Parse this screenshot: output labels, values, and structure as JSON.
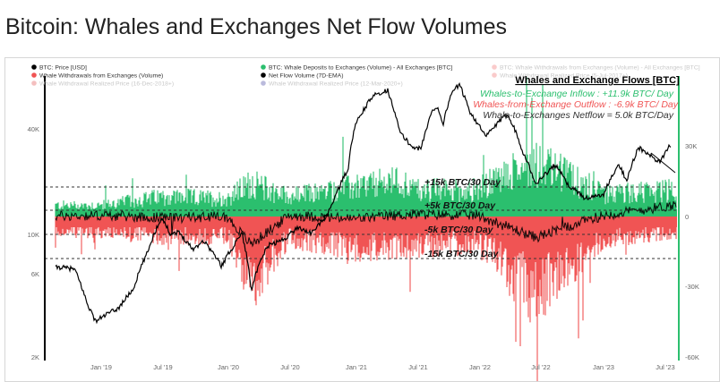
{
  "page": {
    "title": "Bitcoin: Whales and Exchanges Net Flow Volumes"
  },
  "legend": [
    {
      "label": "BTC: Price [USD]",
      "color": "#000000",
      "faded": false
    },
    {
      "label": "BTC: Whale Deposits to Exchanges (Volume) - All Exchanges [BTC]",
      "color": "#2bbf6e",
      "faded": false
    },
    {
      "label": "BTC: Whale Withdrawals from Exchanges (Volume) - All Exchanges [BTC]",
      "color": "#f26b6b",
      "faded": true
    },
    {
      "label": "Whale Withdrawals from Exchanges (Volume)",
      "color": "#f05454",
      "faded": false
    },
    {
      "label": "Net Flow Volume (7D-EMA)",
      "color": "#000000",
      "faded": false
    },
    {
      "label": "Whale Withdrawal Realized Price (5-Jul-2017+)",
      "color": "#f26b6b",
      "faded": true
    },
    {
      "label": "Whale Withdrawal Realized Price (16-Dec-2018+)",
      "color": "#e04848",
      "faded": true
    },
    {
      "label": "Whale Withdrawal Realized Price (12-Mar-2020+)",
      "color": "#3a3a9a",
      "faded": true
    }
  ],
  "annotations": {
    "box_title": "Whales and Exchange Flows [BTC]",
    "inflow": "Whales-to-Exchange Inflow : +11.9k BTC/ Day",
    "outflow": "Whales-from-Exchange Outflow : -6.9k BTC/ Day",
    "netflow": "Whale-to-Exchanges Netflow = 5.0k BTC/Day",
    "levels": [
      {
        "label": "+15k BTC/30 Day",
        "value": 15000
      },
      {
        "label": "+5k BTC/30 Day",
        "value": 5000
      },
      {
        "label": "-5k BTC/30 Day",
        "value": -5000
      },
      {
        "label": "-15k BTC/30 Day",
        "value": -15000
      }
    ]
  },
  "colors": {
    "inflow": "#2bbf6e",
    "outflow": "#f05454",
    "price": "#000000",
    "right_axis": "#2bbf6e",
    "dash": "#333333"
  },
  "chart_data": {
    "type": "area",
    "x_ticks": [
      "Jan '19",
      "Jul '19",
      "Jan '20",
      "Jul '20",
      "Jan '21",
      "Jul '21",
      "Jan '22",
      "Jul '22",
      "Jan '23",
      "Jul '23"
    ],
    "y_left": {
      "label": "",
      "scale": "log",
      "ticks": [
        "2K",
        "6K",
        "10K",
        "40K"
      ],
      "range": [
        2000,
        65000
      ]
    },
    "y_right": {
      "label": "",
      "ticks": [
        "30K",
        "0",
        "-30K",
        "-60K"
      ],
      "range": [
        -60000,
        30000
      ]
    },
    "series": [
      {
        "name": "BTC: Price [USD]",
        "axis": "left",
        "points": [
          [
            "2018-07-01",
            6400
          ],
          [
            "2018-09-01",
            6600
          ],
          [
            "2018-10-15",
            6450
          ],
          [
            "2018-11-20",
            4200
          ],
          [
            "2018-12-15",
            3300
          ],
          [
            "2019-01-15",
            3600
          ],
          [
            "2019-02-20",
            3900
          ],
          [
            "2019-04-05",
            5000
          ],
          [
            "2019-05-15",
            7900
          ],
          [
            "2019-06-26",
            12500
          ],
          [
            "2019-07-20",
            10200
          ],
          [
            "2019-08-15",
            10300
          ],
          [
            "2019-09-25",
            8300
          ],
          [
            "2019-10-26",
            9300
          ],
          [
            "2019-12-17",
            6700
          ],
          [
            "2020-01-20",
            8600
          ],
          [
            "2020-02-14",
            10300
          ],
          [
            "2020-03-13",
            5000
          ],
          [
            "2020-04-30",
            8700
          ],
          [
            "2020-06-15",
            9400
          ],
          [
            "2020-07-27",
            11000
          ],
          [
            "2020-09-05",
            10200
          ],
          [
            "2020-10-21",
            12900
          ],
          [
            "2020-11-25",
            18500
          ],
          [
            "2020-12-20",
            23500
          ],
          [
            "2021-01-08",
            40000
          ],
          [
            "2021-02-21",
            56000
          ],
          [
            "2021-03-13",
            61000
          ],
          [
            "2021-04-14",
            63500
          ],
          [
            "2021-05-19",
            37000
          ],
          [
            "2021-06-22",
            31000
          ],
          [
            "2021-07-20",
            30000
          ],
          [
            "2021-08-22",
            49000
          ],
          [
            "2021-09-06",
            51500
          ],
          [
            "2021-09-22",
            41000
          ],
          [
            "2021-10-20",
            64000
          ],
          [
            "2021-11-09",
            67500
          ],
          [
            "2021-12-10",
            48000
          ],
          [
            "2022-01-23",
            35000
          ],
          [
            "2022-03-29",
            47000
          ],
          [
            "2022-05-12",
            29000
          ],
          [
            "2022-06-18",
            19000
          ],
          [
            "2022-08-14",
            24500
          ],
          [
            "2022-09-20",
            19000
          ],
          [
            "2022-11-09",
            16000
          ],
          [
            "2022-12-31",
            16500
          ],
          [
            "2023-02-16",
            24500
          ],
          [
            "2023-03-10",
            20000
          ],
          [
            "2023-04-14",
            30500
          ],
          [
            "2023-06-15",
            25000
          ],
          [
            "2023-07-13",
            31500
          ],
          [
            "2023-08-01",
            29200
          ]
        ]
      },
      {
        "name": "BTC: Whale Deposits to Exchanges (Volume) - All Exchanges [BTC]",
        "axis": "right",
        "points": [
          [
            "2018-07-01",
            5000
          ],
          [
            "2019-01-01",
            5000
          ],
          [
            "2019-07-01",
            9000
          ],
          [
            "2020-01-01",
            8000
          ],
          [
            "2020-03-12",
            15000
          ],
          [
            "2020-07-01",
            9000
          ],
          [
            "2021-01-01",
            13000
          ],
          [
            "2021-05-19",
            16000
          ],
          [
            "2021-07-01",
            12000
          ],
          [
            "2022-01-01",
            12000
          ],
          [
            "2022-06-18",
            25000
          ],
          [
            "2023-01-01",
            10000
          ],
          [
            "2023-08-01",
            11900
          ]
        ]
      },
      {
        "name": "Whale Withdrawals from Exchanges (Volume)",
        "axis": "right",
        "points": [
          [
            "2018-07-01",
            -6000
          ],
          [
            "2019-01-01",
            -7000
          ],
          [
            "2019-07-01",
            -9000
          ],
          [
            "2020-01-01",
            -9000
          ],
          [
            "2020-03-12",
            -30000
          ],
          [
            "2020-07-01",
            -10000
          ],
          [
            "2021-01-01",
            -14000
          ],
          [
            "2021-07-01",
            -13000
          ],
          [
            "2022-01-01",
            -12000
          ],
          [
            "2022-06-18",
            -35000
          ],
          [
            "2023-01-01",
            -10000
          ],
          [
            "2023-08-01",
            -6900
          ]
        ]
      },
      {
        "name": "Net Flow Volume (7D-EMA)",
        "axis": "right",
        "points": [
          [
            "2018-07-01",
            0
          ],
          [
            "2019-01-01",
            500
          ],
          [
            "2019-07-01",
            -500
          ],
          [
            "2020-01-01",
            0
          ],
          [
            "2020-03-12",
            -12000
          ],
          [
            "2020-07-01",
            500
          ],
          [
            "2021-01-01",
            -1000
          ],
          [
            "2021-07-01",
            1000
          ],
          [
            "2022-01-01",
            500
          ],
          [
            "2022-06-18",
            -9000
          ],
          [
            "2023-01-01",
            500
          ],
          [
            "2023-08-01",
            5000
          ]
        ]
      }
    ]
  }
}
